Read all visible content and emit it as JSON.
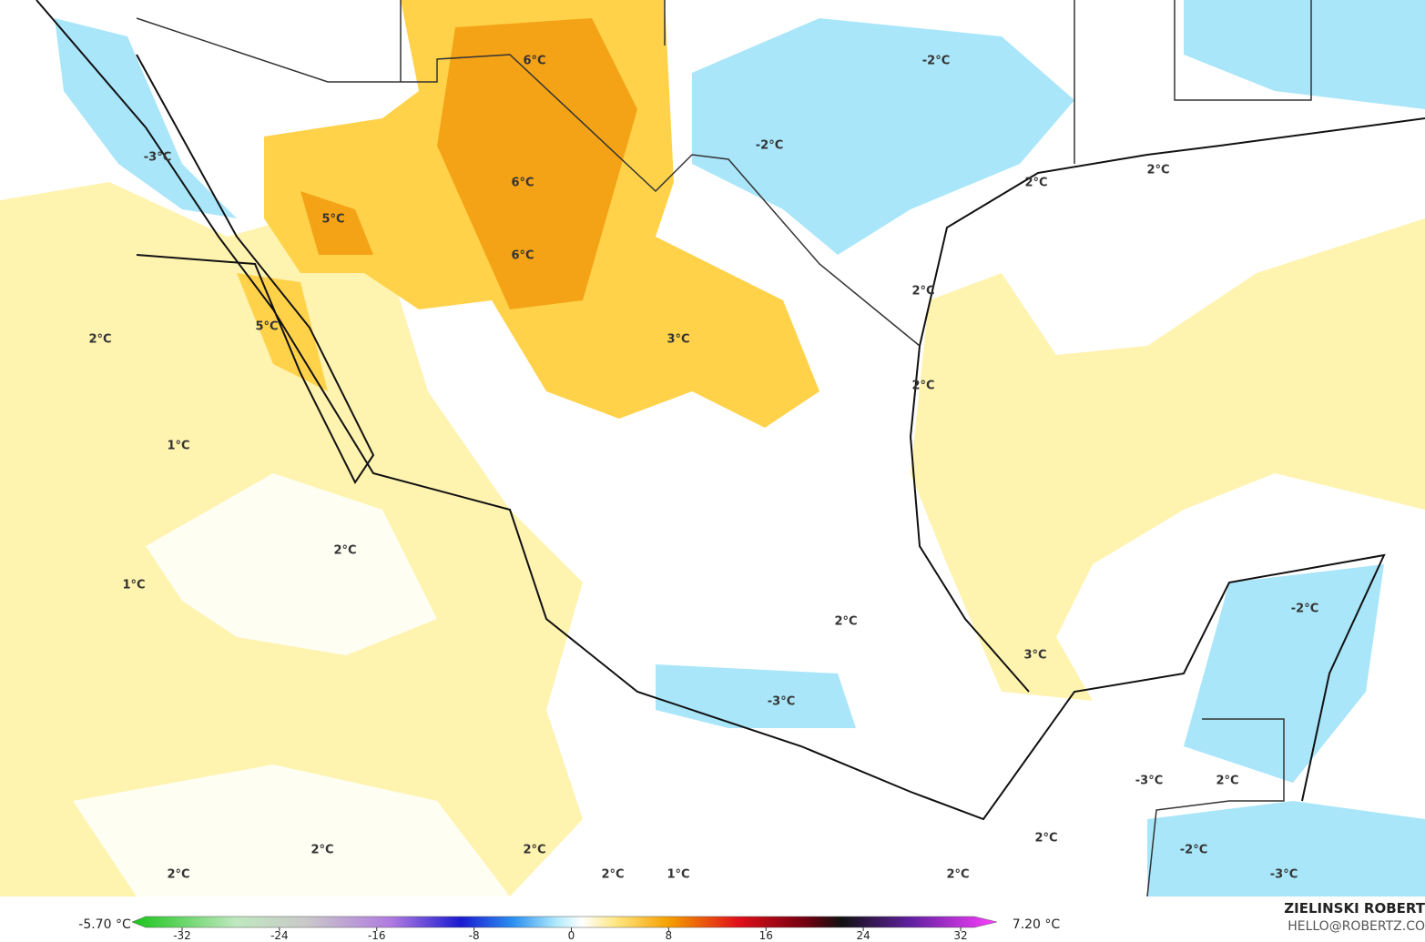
{
  "map": {
    "labels": [
      "6°C",
      "-2°C",
      "-2°C",
      "-3°C",
      "2°C",
      "2°C",
      "6°C",
      "5°C",
      "6°C",
      "2°C",
      "5°C",
      "2°C",
      "3°C",
      "2°C",
      "1°C",
      "2°C",
      "1°C",
      "-2°C",
      "2°C",
      "3°C",
      "-3°C",
      "-3°C",
      "2°C",
      "2°C",
      "2°C",
      "2°C",
      "-2°C",
      "2°C",
      "2°C",
      "1°C",
      "2°C",
      "-3°C"
    ],
    "colorbar": {
      "min_label": "-5.70 °C",
      "max_label": "7.20 °C",
      "ticks": [
        -32,
        -24,
        -16,
        -8,
        0,
        8,
        16,
        24,
        32
      ]
    },
    "credit": {
      "name": "ZIELINSKI ROBERT",
      "contact": "HELLO@ROBERTZ.CO"
    }
  }
}
